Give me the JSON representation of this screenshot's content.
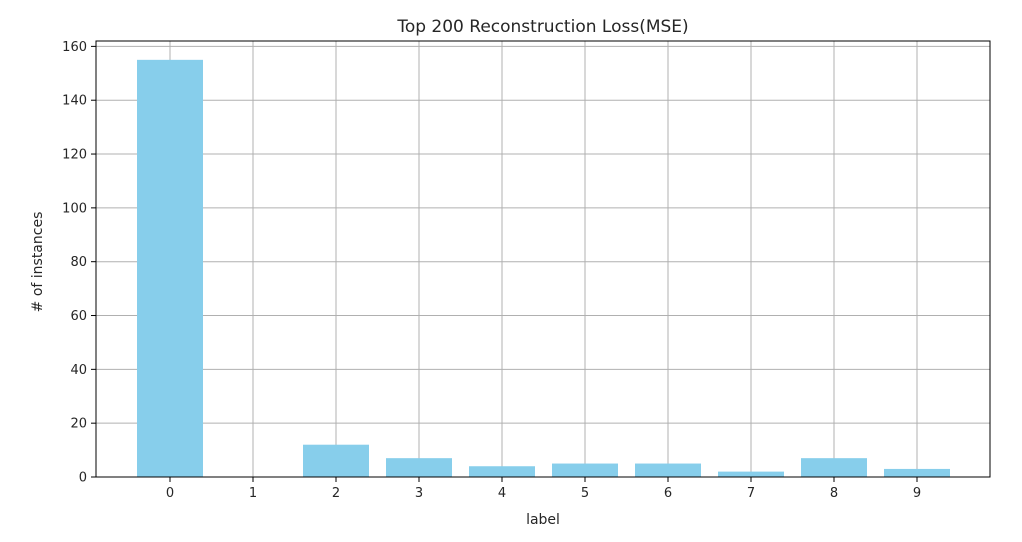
{
  "chart_data": {
    "type": "bar",
    "title": "Top 200 Reconstruction Loss(MSE)",
    "xlabel": "label",
    "ylabel": "# of instances",
    "categories": [
      "0",
      "1",
      "2",
      "3",
      "4",
      "5",
      "6",
      "7",
      "8",
      "9"
    ],
    "values": [
      155,
      0,
      12,
      7,
      4,
      5,
      5,
      2,
      7,
      3
    ],
    "ylim": [
      0,
      162
    ],
    "yticks": [
      0,
      20,
      40,
      60,
      80,
      100,
      120,
      140,
      160
    ],
    "grid": true,
    "legend": "none",
    "bar_color": "#87ceeb",
    "grid_color": "#b0b0b0",
    "axis_color": "#000000"
  }
}
